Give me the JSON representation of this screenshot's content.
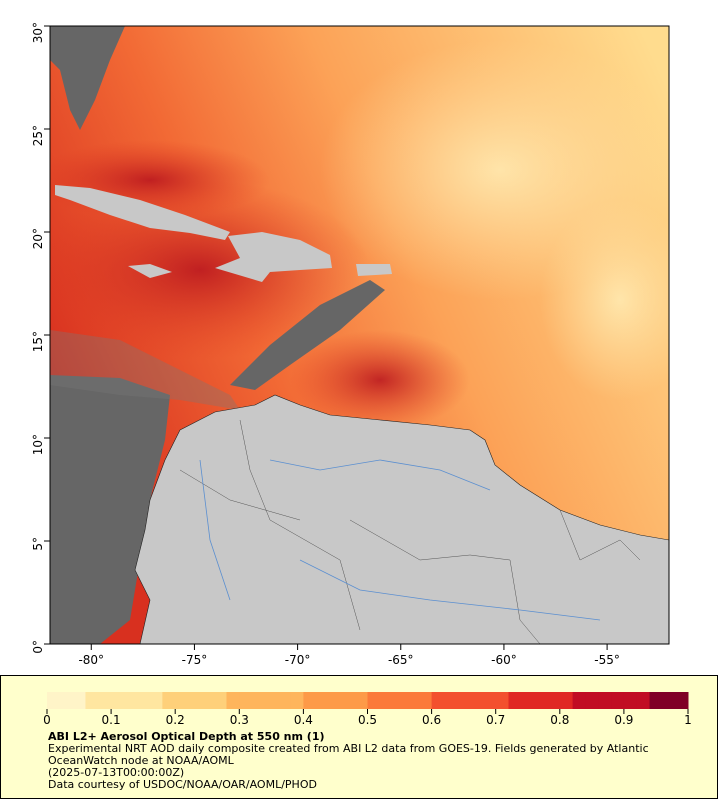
{
  "map": {
    "xlim": [
      -82,
      -52
    ],
    "ylim": [
      0,
      30
    ],
    "xticks": [
      {
        "value": -80,
        "label": "-80°"
      },
      {
        "value": -75,
        "label": "-75°"
      },
      {
        "value": -70,
        "label": "-70°"
      },
      {
        "value": -65,
        "label": "-65°"
      },
      {
        "value": -60,
        "label": "-60°"
      },
      {
        "value": -55,
        "label": "-55°"
      }
    ],
    "yticks": [
      {
        "value": 0,
        "label": "0°"
      },
      {
        "value": 5,
        "label": "5°"
      },
      {
        "value": 10,
        "label": "10°"
      },
      {
        "value": 15,
        "label": "15°"
      },
      {
        "value": 20,
        "label": "20°"
      },
      {
        "value": 25,
        "label": "25°"
      },
      {
        "value": 30,
        "label": "30°"
      }
    ]
  },
  "colorbar": {
    "range": [
      0,
      1
    ],
    "ticks": [
      0,
      0.1,
      0.2,
      0.3,
      0.4,
      0.5,
      0.6,
      0.7,
      0.8,
      0.9,
      1
    ],
    "palette": [
      "#fff4c8",
      "#ffe6a0",
      "#fed07a",
      "#feb55c",
      "#fd9a48",
      "#fb7a3a",
      "#f3502e",
      "#e02824",
      "#c10d24",
      "#800026"
    ]
  },
  "caption": {
    "title": "ABI L2+ Aerosol Optical Depth at 550 nm (1)",
    "description": "Experimental NRT AOD daily composite created from ABI L2 data from GOES-19. Fields generated by Atlantic OceanWatch node at NOAA/AOML",
    "time": "(2025-07-13T00:00:00Z)",
    "credit": "Data courtesy of USDOC/NOAA/OAR/AOML/PHOD"
  }
}
